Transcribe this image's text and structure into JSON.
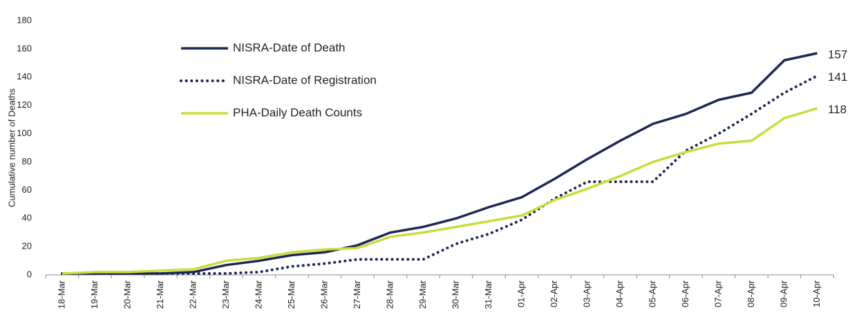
{
  "chart_data": {
    "type": "line",
    "y_label": "Cumulative number of Deaths",
    "categories": [
      "18-Mar",
      "19-Mar",
      "20-Mar",
      "21-Mar",
      "22-Mar",
      "23-Mar",
      "24-Mar",
      "25-Mar",
      "26-Mar",
      "27-Mar",
      "28-Mar",
      "29-Mar",
      "30-Mar",
      "31-Mar",
      "01-Apr",
      "02-Apr",
      "03-Apr",
      "04-Apr",
      "05-Apr",
      "06-Apr",
      "07-Apr",
      "08-Apr",
      "09-Apr",
      "10-Apr"
    ],
    "series": [
      {
        "name": "NISRA-Date of Death",
        "color": "#1c2754",
        "style": "solid",
        "values": [
          1,
          1,
          1,
          1,
          2,
          7,
          10,
          14,
          16,
          21,
          30,
          34,
          40,
          48,
          55,
          68,
          82,
          95,
          107,
          114,
          124,
          129,
          152,
          157
        ]
      },
      {
        "name": "NISRA-Date of Registration",
        "color": "#1c2754",
        "style": "dotted",
        "values": [
          1,
          1,
          1,
          1,
          1,
          1,
          2,
          6,
          8,
          11,
          11,
          11,
          22,
          29,
          39,
          54,
          66,
          66,
          66,
          88,
          100,
          114,
          129,
          141
        ]
      },
      {
        "name": "PHA-Daily Death Counts",
        "color": "#cadc3a",
        "style": "solid",
        "values": [
          1,
          2,
          2,
          3,
          4,
          10,
          12,
          16,
          18,
          19,
          27,
          30,
          34,
          38,
          42,
          53,
          61,
          70,
          80,
          87,
          93,
          95,
          111,
          118
        ]
      }
    ],
    "ylim": [
      0,
      180
    ],
    "yticks": [
      0,
      20,
      40,
      60,
      80,
      100,
      120,
      140,
      160,
      180
    ],
    "grid": false,
    "legend": "upper left"
  }
}
